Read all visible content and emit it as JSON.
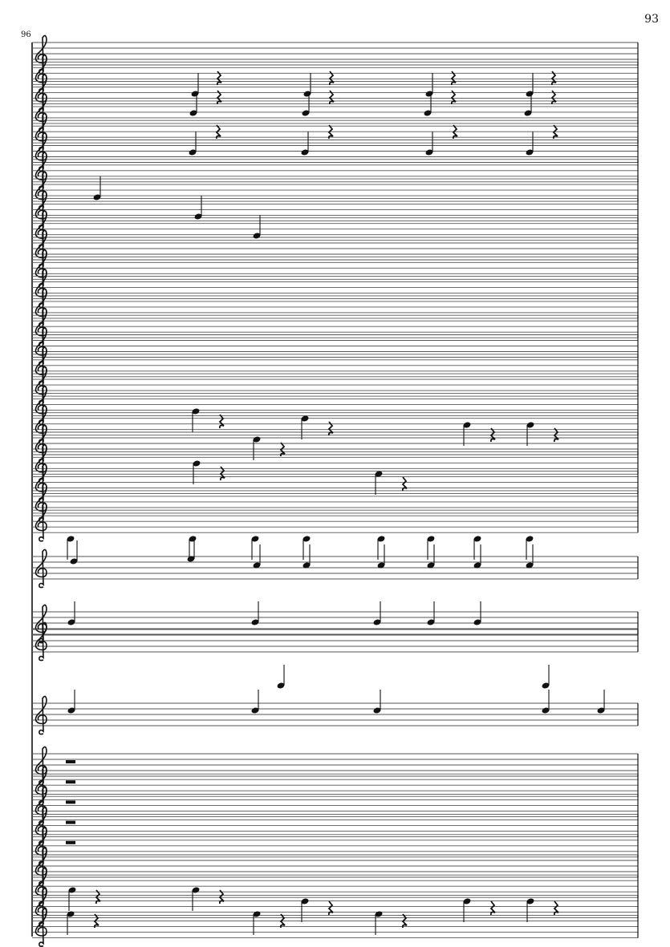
{
  "page": {
    "number": "93"
  },
  "score": {
    "measure_number": "96",
    "clef": "treble-clef",
    "ink_color": "#111111",
    "staff_line_color": "#555555"
  }
}
